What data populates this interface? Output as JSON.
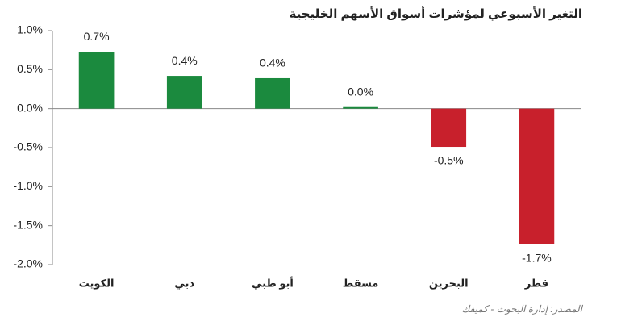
{
  "chart_data": {
    "type": "bar",
    "title": "التغير الأسبوعي لمؤشرات أسواق الأسهم الخليجية",
    "source": "المصدر: إدارة البحوث - كميفك",
    "categories": [
      "الكويت",
      "دبي",
      "أبو ظبي",
      "مسقط",
      "البحرين",
      "قطر"
    ],
    "values": [
      0.73,
      0.42,
      0.39,
      0.02,
      -0.49,
      -1.74
    ],
    "value_labels": [
      "0.7%",
      "0.4%",
      "0.4%",
      "0.0%",
      "-0.5%",
      "-1.7%"
    ],
    "colors": [
      "#1b8a3e",
      "#1b8a3e",
      "#1b8a3e",
      "#1b8a3e",
      "#c8202c",
      "#c8202c"
    ],
    "ylim": [
      -2.0,
      1.0
    ],
    "yticks": [
      {
        "value": -2.0,
        "label": "-2.0%"
      },
      {
        "value": -1.5,
        "label": "-1.5%"
      },
      {
        "value": -1.0,
        "label": "-1.0%"
      },
      {
        "value": -0.5,
        "label": "-0.5%"
      },
      {
        "value": 0.0,
        "label": "0.0%"
      },
      {
        "value": 0.5,
        "label": "0.5%"
      },
      {
        "value": 1.0,
        "label": "1.0%"
      }
    ],
    "grid": false
  }
}
